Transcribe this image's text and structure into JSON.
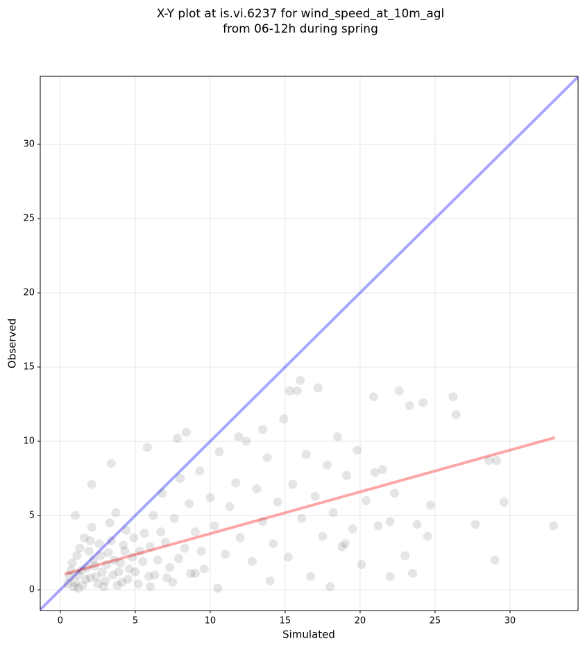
{
  "chart_data": {
    "type": "scatter",
    "title": [
      "X-Y plot at is.vi.6237 for wind_speed_at_10m_agl",
      "from 06-12h during spring"
    ],
    "x_label": "Simulated",
    "y_label": "Observed",
    "xlim": [
      -1.34,
      34.54
    ],
    "ylim": [
      -1.4,
      34.58
    ],
    "xticks": [
      0,
      5,
      10,
      15,
      20,
      25,
      30
    ],
    "yticks": [
      0,
      5,
      10,
      15,
      20,
      25,
      30
    ],
    "grid": true,
    "point_color": "#000000",
    "point_opacity": 0.1,
    "x": [
      1,
      1.2,
      1.5,
      1.8,
      2,
      2.2,
      2.5,
      2.8,
      3,
      3.2,
      3.5,
      3.8,
      4,
      4.2,
      4.5,
      4.8,
      1.3,
      1.6,
      0.8,
      0.6,
      2.1,
      2.6,
      3.3,
      3.7,
      4.4,
      5,
      5.3,
      5.6,
      5.9,
      6.2,
      6.5,
      6.8,
      7,
      7.3,
      7.6,
      8,
      8.3,
      8.6,
      9,
      9.3,
      9.6,
      10,
      10.3,
      10.6,
      11,
      11.3,
      11.7,
      12,
      12.4,
      12.8,
      13.1,
      13.5,
      13.8,
      14.2,
      14.5,
      14.9,
      15.2,
      15.5,
      15.8,
      16.1,
      16.4,
      16.7,
      17,
      17.2,
      17.5,
      17.8,
      18.2,
      18.5,
      18.8,
      19.1,
      19.5,
      19.8,
      20.1,
      20.4,
      20.9,
      21.2,
      21.5,
      22,
      22.3,
      22.6,
      23,
      23.3,
      23.8,
      24.2,
      24.5,
      24.7,
      26.2,
      26.4,
      27.7,
      28.6,
      29,
      29.1,
      29.6,
      32.9,
      16,
      8.4,
      7.8,
      3.4,
      1,
      2.1,
      5.8,
      11.9,
      15.3,
      13.5,
      9,
      10.5,
      6,
      7.5,
      14,
      18,
      19,
      21,
      22,
      23.5,
      0.9,
      1.1,
      1.4,
      1.7,
      1.9,
      2.3,
      2.4,
      2.7,
      2.9,
      3.1,
      3.4,
      3.6,
      3.9,
      4.1,
      4.3,
      4.6,
      4.9,
      5.2,
      5.5,
      6,
      6.3,
      6.7,
      7.1,
      7.9,
      8.7,
      9.4,
      0.5,
      0.7,
      1.2,
      2
    ],
    "y": [
      0.5,
      1,
      0.3,
      1.5,
      0.8,
      2,
      0.4,
      1.2,
      0.6,
      2.5,
      1,
      0.3,
      1.8,
      3,
      0.7,
      2.2,
      2.8,
      3.5,
      1.8,
      0.9,
      4.2,
      3.1,
      4.5,
      5.2,
      4,
      1.2,
      2.6,
      3.8,
      0.9,
      5,
      2,
      6.5,
      3.2,
      1.5,
      4.8,
      7.5,
      2.8,
      5.8,
      3.9,
      8,
      1.4,
      6.2,
      4.3,
      9.3,
      2.4,
      5.6,
      7.2,
      3.5,
      10,
      1.9,
      6.8,
      4.6,
      8.9,
      3.1,
      5.9,
      11.5,
      2.2,
      7.1,
      13.4,
      4.8,
      9.1,
      0.9,
      6.3,
      13.6,
      3.6,
      8.4,
      5.2,
      10.3,
      2.9,
      7.7,
      4.1,
      9.4,
      1.7,
      6,
      13,
      4.3,
      8.1,
      0.9,
      6.5,
      13.4,
      2.3,
      12.4,
      4.4,
      12.6,
      3.6,
      5.7,
      13,
      11.8,
      4.4,
      8.7,
      2,
      8.7,
      5.9,
      4.3,
      14.1,
      10.6,
      10.2,
      8.5,
      5,
      7.1,
      9.6,
      10.3,
      13.4,
      10.8,
      1.1,
      0.1,
      0.2,
      0.5,
      0.6,
      0.2,
      3.1,
      7.9,
      4.6,
      1.1,
      0.2,
      2.3,
      1.3,
      0.7,
      2.6,
      1.6,
      0.9,
      2.3,
      0.2,
      1.7,
      3.3,
      2,
      1.2,
      0.5,
      2.6,
      1.4,
      3.5,
      0.4,
      1.9,
      2.9,
      1,
      3.9,
      0.8,
      2.1,
      1.1,
      2.6,
      0.4,
      1.3,
      0.1,
      3.3
    ],
    "lines": [
      {
        "color": "#0000ff",
        "opacity": 0.35,
        "x": [
          -1.34,
          34.54
        ],
        "values": [
          -1.34,
          34.54
        ]
      },
      {
        "color": "#ff0000",
        "opacity": 0.35,
        "x": [
          0.3,
          33
        ],
        "values": [
          1.05,
          10.25
        ]
      }
    ]
  }
}
